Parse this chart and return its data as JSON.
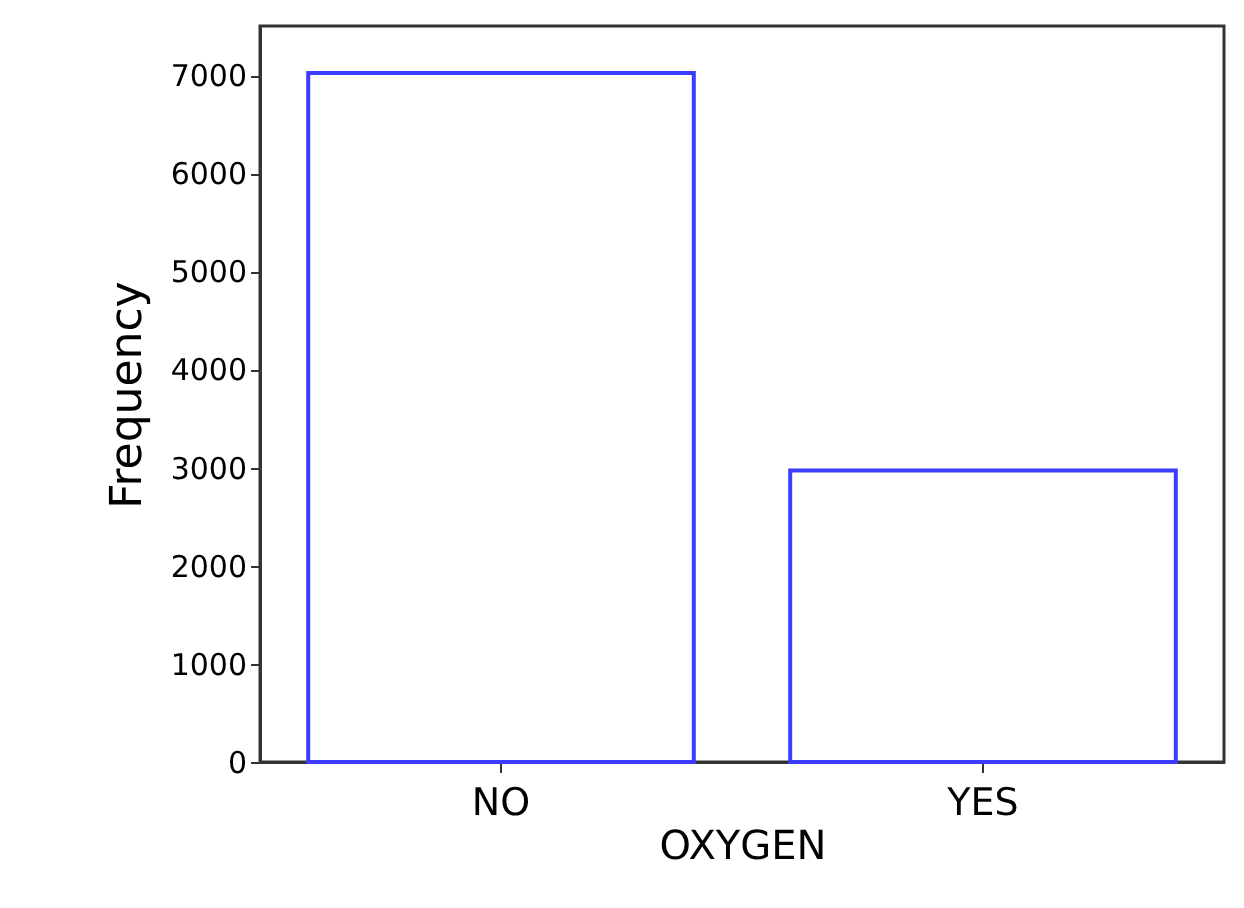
{
  "chart_data": {
    "type": "bar",
    "xlabel": "OXYGEN",
    "ylabel": "Frequency",
    "categories": [
      "NO",
      "YES"
    ],
    "values": [
      7020,
      2970
    ],
    "color": "#3c3cff",
    "ylim": [
      0,
      7500
    ],
    "yticks": [
      0,
      1000,
      2000,
      3000,
      4000,
      5000,
      6000,
      7000
    ],
    "grid": false
  }
}
